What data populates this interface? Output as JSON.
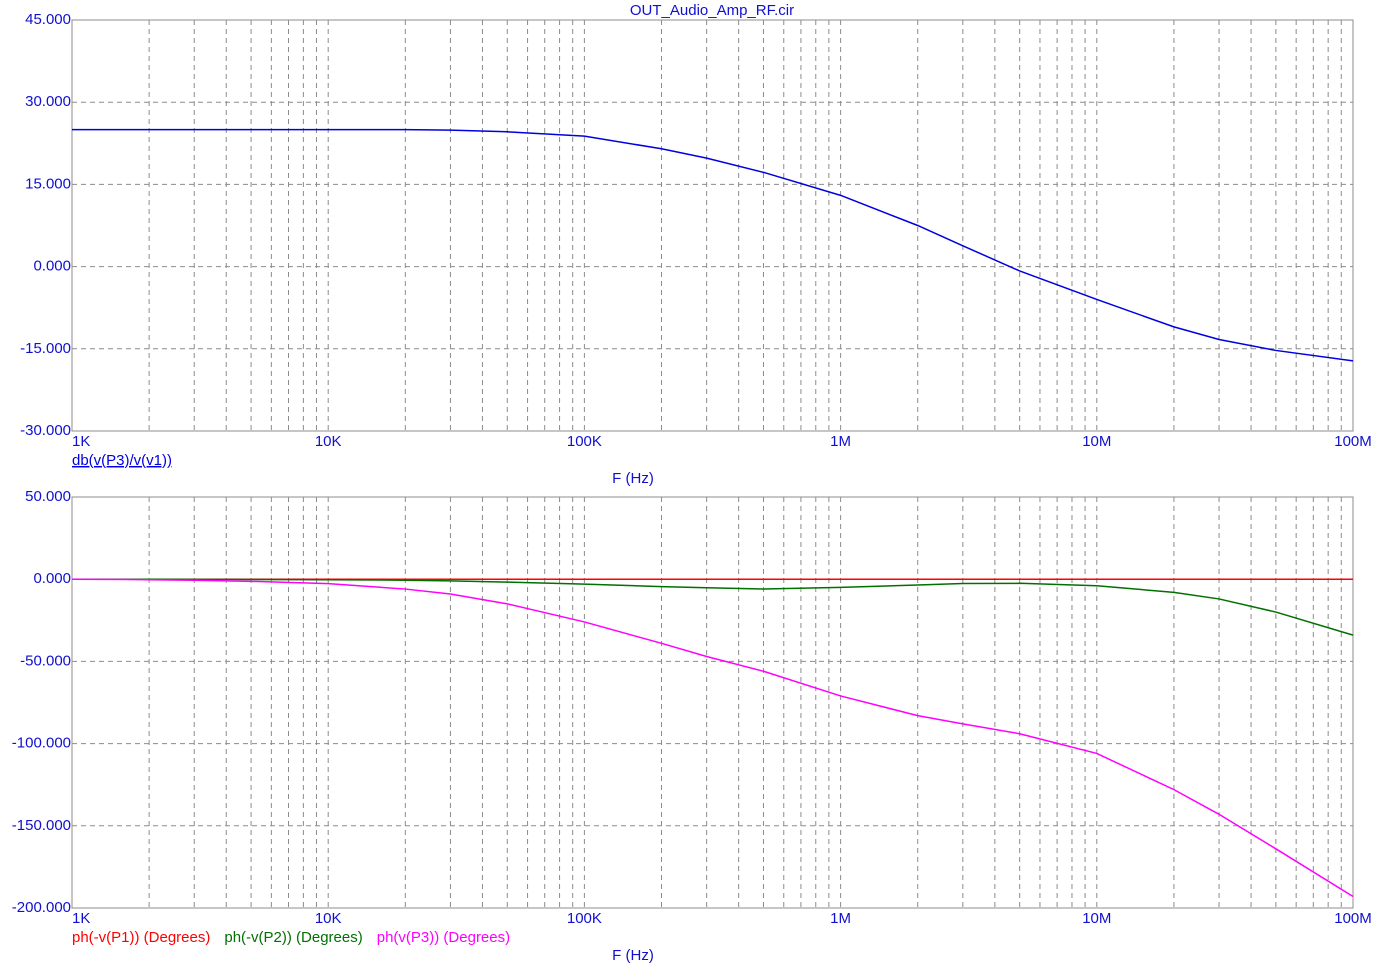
{
  "chart_data": [
    {
      "type": "line",
      "title": "OUT_Audio_Amp_RF.cir",
      "xlabel": "F (Hz)",
      "xscale": "log",
      "grid": true,
      "xlim": [
        1000,
        100000000
      ],
      "xticks": [
        {
          "value": 1000,
          "label": "1K"
        },
        {
          "value": 10000,
          "label": "10K"
        },
        {
          "value": 100000,
          "label": "100K"
        },
        {
          "value": 1000000,
          "label": "1M"
        },
        {
          "value": 10000000,
          "label": "10M"
        },
        {
          "value": 100000000,
          "label": "100M"
        }
      ],
      "xminorticks": [
        2000,
        3000,
        4000,
        5000,
        6000,
        7000,
        8000,
        9000,
        20000,
        30000,
        40000,
        50000,
        60000,
        70000,
        80000,
        90000,
        200000,
        300000,
        400000,
        500000,
        600000,
        700000,
        800000,
        900000,
        2000000,
        3000000,
        4000000,
        5000000,
        6000000,
        7000000,
        8000000,
        9000000,
        20000000,
        30000000,
        40000000,
        50000000,
        60000000,
        70000000,
        80000000,
        90000000
      ],
      "ylim": [
        -30,
        45
      ],
      "yticks": [
        {
          "value": -30,
          "label": "-30.000"
        },
        {
          "value": -15,
          "label": "-15.000"
        },
        {
          "value": 0,
          "label": "0.000"
        },
        {
          "value": 15,
          "label": "15.000"
        },
        {
          "value": 30,
          "label": "30.000"
        },
        {
          "value": 45,
          "label": "45.000"
        }
      ],
      "x": [
        1000,
        2000,
        3000,
        5000,
        10000,
        20000,
        30000,
        50000,
        100000,
        200000,
        300000,
        500000,
        1000000,
        2000000,
        3000000,
        5000000,
        10000000,
        20000000,
        30000000,
        50000000,
        100000000
      ],
      "series": [
        {
          "name": "db(v(P3)/v(v1))",
          "color": "#0000e0",
          "values": [
            25,
            25,
            25,
            25,
            25,
            25,
            24.9,
            24.6,
            23.8,
            21.5,
            19.8,
            17.2,
            13,
            7.5,
            3.8,
            -0.8,
            -6,
            -11,
            -13.3,
            -15.3,
            -17.2
          ]
        }
      ]
    },
    {
      "type": "line",
      "xlabel": "F (Hz)",
      "xscale": "log",
      "grid": true,
      "xlim": [
        1000,
        100000000
      ],
      "xticks": [
        {
          "value": 1000,
          "label": "1K"
        },
        {
          "value": 10000,
          "label": "10K"
        },
        {
          "value": 100000,
          "label": "100K"
        },
        {
          "value": 1000000,
          "label": "1M"
        },
        {
          "value": 10000000,
          "label": "10M"
        },
        {
          "value": 100000000,
          "label": "100M"
        }
      ],
      "xminorticks": [
        2000,
        3000,
        4000,
        5000,
        6000,
        7000,
        8000,
        9000,
        20000,
        30000,
        40000,
        50000,
        60000,
        70000,
        80000,
        90000,
        200000,
        300000,
        400000,
        500000,
        600000,
        700000,
        800000,
        900000,
        2000000,
        3000000,
        4000000,
        5000000,
        6000000,
        7000000,
        8000000,
        9000000,
        20000000,
        30000000,
        40000000,
        50000000,
        60000000,
        70000000,
        80000000,
        90000000
      ],
      "ylim": [
        -200,
        50
      ],
      "yticks": [
        {
          "value": -200,
          "label": "-200.000"
        },
        {
          "value": -150,
          "label": "-150.000"
        },
        {
          "value": -100,
          "label": "-100.000"
        },
        {
          "value": -50,
          "label": "-50.000"
        },
        {
          "value": 0,
          "label": "0.000"
        },
        {
          "value": 50,
          "label": "50.000"
        }
      ],
      "x": [
        1000,
        2000,
        3000,
        5000,
        10000,
        20000,
        30000,
        50000,
        100000,
        200000,
        300000,
        500000,
        1000000,
        2000000,
        3000000,
        5000000,
        10000000,
        20000000,
        30000000,
        50000000,
        100000000
      ],
      "series": [
        {
          "name": "ph(-v(P1)) (Degrees)",
          "color": "#ff0000",
          "values": [
            0,
            0,
            0,
            0,
            0,
            0,
            0,
            0,
            0,
            0,
            0,
            0,
            0,
            0,
            0,
            0,
            0,
            0,
            0,
            0,
            0
          ]
        },
        {
          "name": "ph(-v(P2)) (Degrees)",
          "color": "#007000",
          "values": [
            0,
            0,
            -0.1,
            -0.2,
            -0.3,
            -0.6,
            -1,
            -1.8,
            -3,
            -4.5,
            -5.2,
            -6,
            -5,
            -3.5,
            -2.6,
            -2.5,
            -4,
            -8,
            -12,
            -20,
            -34
          ]
        },
        {
          "name": "ph(v(P3)) (Degrees)",
          "color": "#ff00ff",
          "values": [
            0,
            -0.3,
            -0.6,
            -1.3,
            -2.7,
            -6,
            -9,
            -15,
            -26,
            -39,
            -47,
            -56,
            -71,
            -83,
            -88,
            -94,
            -106,
            -128,
            -143,
            -164,
            -193
          ]
        }
      ]
    }
  ]
}
